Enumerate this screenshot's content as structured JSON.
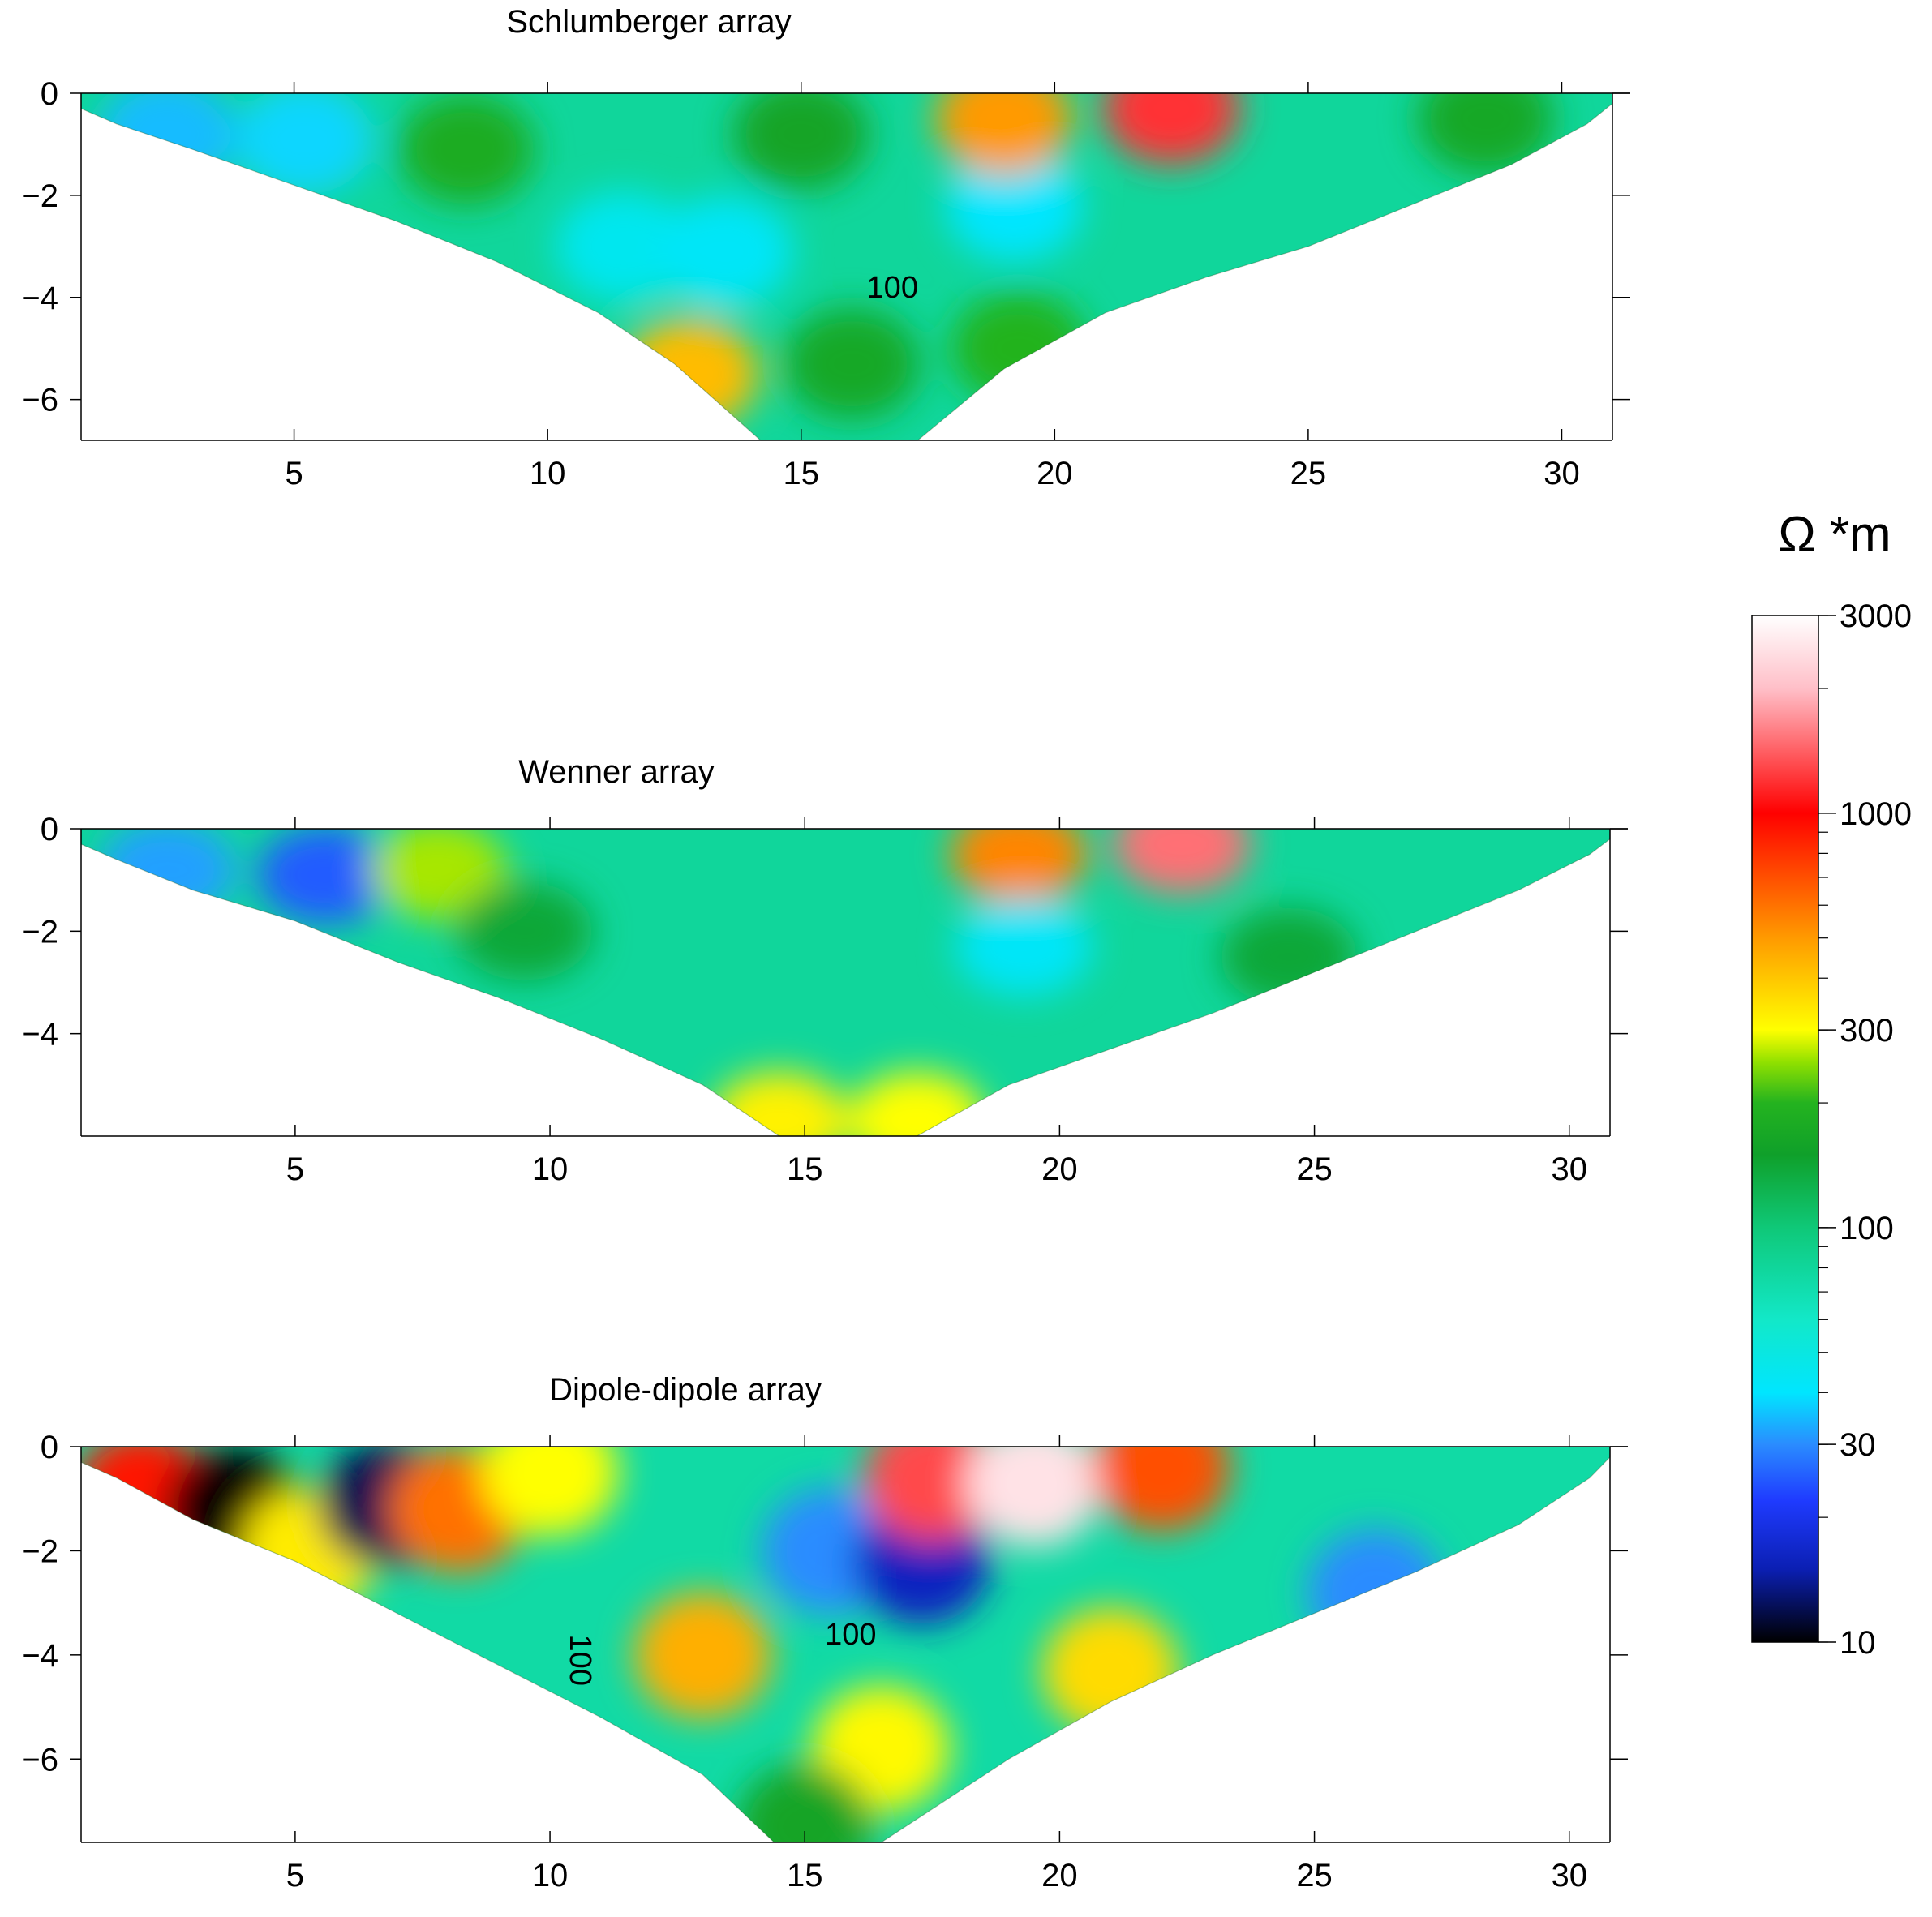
{
  "figure": {
    "colorbar": {
      "unit_label": "Ω *m",
      "scale": "log",
      "range": [
        10,
        3000
      ],
      "tick_labels": [
        "3000",
        "1000",
        "300",
        "100",
        "30",
        "10"
      ],
      "tick_values": [
        3000,
        1000,
        300,
        100,
        30,
        10
      ],
      "color_stops": [
        {
          "value": 10,
          "color": "#000000"
        },
        {
          "value": 15,
          "color": "#0b1fb3"
        },
        {
          "value": 22,
          "color": "#1f3bff"
        },
        {
          "value": 30,
          "color": "#2a8cff"
        },
        {
          "value": 40,
          "color": "#00e6ff"
        },
        {
          "value": 60,
          "color": "#12e8c8"
        },
        {
          "value": 100,
          "color": "#0fc878"
        },
        {
          "value": 150,
          "color": "#0fa02a"
        },
        {
          "value": 200,
          "color": "#24b31f"
        },
        {
          "value": 250,
          "color": "#8fe000"
        },
        {
          "value": 300,
          "color": "#ffff00"
        },
        {
          "value": 500,
          "color": "#ff9a00"
        },
        {
          "value": 1000,
          "color": "#ff0000"
        },
        {
          "value": 2000,
          "color": "#ffbfc8"
        },
        {
          "value": 3000,
          "color": "#ffffff"
        }
      ]
    }
  },
  "chart_data": [
    {
      "type": "heatmap",
      "title": "Schlumberger array",
      "xlabel": "",
      "ylabel": "",
      "xlim": [
        0.8,
        31
      ],
      "ylim": [
        -6.8,
        0
      ],
      "xticks": [
        5,
        10,
        15,
        20,
        25,
        30
      ],
      "yticks": [
        0,
        -2,
        -4,
        -6
      ],
      "ytick_labels": [
        "0",
        "−2",
        "−4",
        "−6"
      ],
      "base_value": 80,
      "pseudosection_boundary": {
        "x": [
          0.8,
          1.5,
          3,
          5,
          7,
          9,
          11,
          12.5,
          14.2,
          17.3,
          19,
          21,
          23,
          25,
          27,
          29,
          30.5,
          31
        ],
        "y": [
          -0.3,
          -0.6,
          -1.1,
          -1.8,
          -2.5,
          -3.3,
          -4.3,
          -5.3,
          -6.8,
          -6.8,
          -5.4,
          -4.3,
          -3.6,
          -3.0,
          -2.2,
          -1.4,
          -0.6,
          -0.2
        ]
      },
      "anomalies": [
        {
          "x": 2.5,
          "y": -0.8,
          "value": 35
        },
        {
          "x": 5.2,
          "y": -0.9,
          "value": 38
        },
        {
          "x": 8.4,
          "y": -1.1,
          "value": 180
        },
        {
          "x": 11.5,
          "y": -3.0,
          "value": 45
        },
        {
          "x": 13.5,
          "y": -3.1,
          "value": 42
        },
        {
          "x": 15.0,
          "y": -0.8,
          "value": 160
        },
        {
          "x": 19.2,
          "y": -2.2,
          "value": 40
        },
        {
          "x": 19.0,
          "y": -0.5,
          "value": 500
        },
        {
          "x": 22.3,
          "y": -0.3,
          "value": 1200
        },
        {
          "x": 12.8,
          "y": -5.5,
          "value": 420
        },
        {
          "x": 16.0,
          "y": -5.3,
          "value": 170
        },
        {
          "x": 19.3,
          "y": -5.0,
          "value": 200
        },
        {
          "x": 28.5,
          "y": -0.5,
          "value": 170
        }
      ],
      "contour_labels": [
        {
          "text": "100",
          "x": 16.8,
          "y": -4.0
        }
      ]
    },
    {
      "type": "heatmap",
      "title": "Wenner array",
      "xlabel": "",
      "ylabel": "",
      "xlim": [
        0.8,
        30.8
      ],
      "ylim": [
        -6.0,
        0
      ],
      "xticks": [
        5,
        10,
        15,
        20,
        25,
        30
      ],
      "yticks": [
        0,
        -2,
        -4
      ],
      "ytick_labels": [
        "0",
        "−2",
        "−4"
      ],
      "base_value": 80,
      "pseudosection_boundary": {
        "x": [
          0.8,
          1.5,
          3,
          5,
          7,
          9,
          11,
          13,
          14.5,
          17.2,
          19,
          21,
          23,
          25,
          27,
          29,
          30.4,
          30.8
        ],
        "y": [
          -0.3,
          -0.6,
          -1.2,
          -1.8,
          -2.6,
          -3.3,
          -4.1,
          -5.0,
          -6.0,
          -6.0,
          -5.0,
          -4.3,
          -3.6,
          -2.8,
          -2.0,
          -1.2,
          -0.5,
          -0.2
        ]
      },
      "anomalies": [
        {
          "x": 2.5,
          "y": -0.8,
          "value": 32
        },
        {
          "x": 5.6,
          "y": -0.9,
          "value": 25
        },
        {
          "x": 7.8,
          "y": -0.8,
          "value": 260
        },
        {
          "x": 9.5,
          "y": -2.0,
          "value": 140
        },
        {
          "x": 19.2,
          "y": -0.5,
          "value": 550
        },
        {
          "x": 22.4,
          "y": -0.3,
          "value": 1500
        },
        {
          "x": 19.3,
          "y": -2.3,
          "value": 42
        },
        {
          "x": 24.5,
          "y": -2.5,
          "value": 140
        },
        {
          "x": 14.5,
          "y": -5.7,
          "value": 320
        },
        {
          "x": 17.2,
          "y": -5.7,
          "value": 300
        }
      ],
      "contour_labels": []
    },
    {
      "type": "heatmap",
      "title": "Dipole-dipole array",
      "xlabel": "",
      "ylabel": "",
      "xlim": [
        0.8,
        30.8
      ],
      "ylim": [
        -7.6,
        0
      ],
      "xticks": [
        5,
        10,
        15,
        20,
        25,
        30
      ],
      "yticks": [
        0,
        -2,
        -4,
        -6
      ],
      "ytick_labels": [
        "0",
        "−2",
        "−4",
        "−6"
      ],
      "base_value": 75,
      "pseudosection_boundary": {
        "x": [
          0.8,
          1.5,
          3,
          5,
          7,
          9,
          11,
          13,
          14.4,
          16.5,
          19,
          21,
          23,
          25,
          27,
          29,
          30.4,
          30.8
        ],
        "y": [
          -0.3,
          -0.6,
          -1.4,
          -2.2,
          -3.2,
          -4.2,
          -5.2,
          -6.3,
          -7.6,
          -7.6,
          -6.0,
          -4.9,
          -4.0,
          -3.2,
          -2.4,
          -1.5,
          -0.6,
          -0.2
        ]
      },
      "anomalies": [
        {
          "x": 2.0,
          "y": -0.9,
          "value": 900
        },
        {
          "x": 3.8,
          "y": -1.2,
          "value": 10
        },
        {
          "x": 5.3,
          "y": -2.0,
          "value": 330
        },
        {
          "x": 6.8,
          "y": -1.1,
          "value": 12
        },
        {
          "x": 8.2,
          "y": -1.2,
          "value": 600
        },
        {
          "x": 10.0,
          "y": -0.5,
          "value": 300
        },
        {
          "x": 13.0,
          "y": -4.0,
          "value": 450
        },
        {
          "x": 15.5,
          "y": -2.0,
          "value": 30
        },
        {
          "x": 17.3,
          "y": -2.2,
          "value": 16
        },
        {
          "x": 17.5,
          "y": -0.6,
          "value": 1300
        },
        {
          "x": 19.5,
          "y": -0.7,
          "value": 2500
        },
        {
          "x": 22.0,
          "y": -0.4,
          "value": 700
        },
        {
          "x": 16.5,
          "y": -5.8,
          "value": 310
        },
        {
          "x": 21.0,
          "y": -4.3,
          "value": 360
        },
        {
          "x": 26.2,
          "y": -2.8,
          "value": 30
        },
        {
          "x": 15.0,
          "y": -7.3,
          "value": 160
        }
      ],
      "contour_labels": [
        {
          "text": "100",
          "x": 15.9,
          "y": -3.8
        },
        {
          "text": "100",
          "x": 10.4,
          "y": -4.1,
          "rotate": 90
        }
      ]
    }
  ]
}
